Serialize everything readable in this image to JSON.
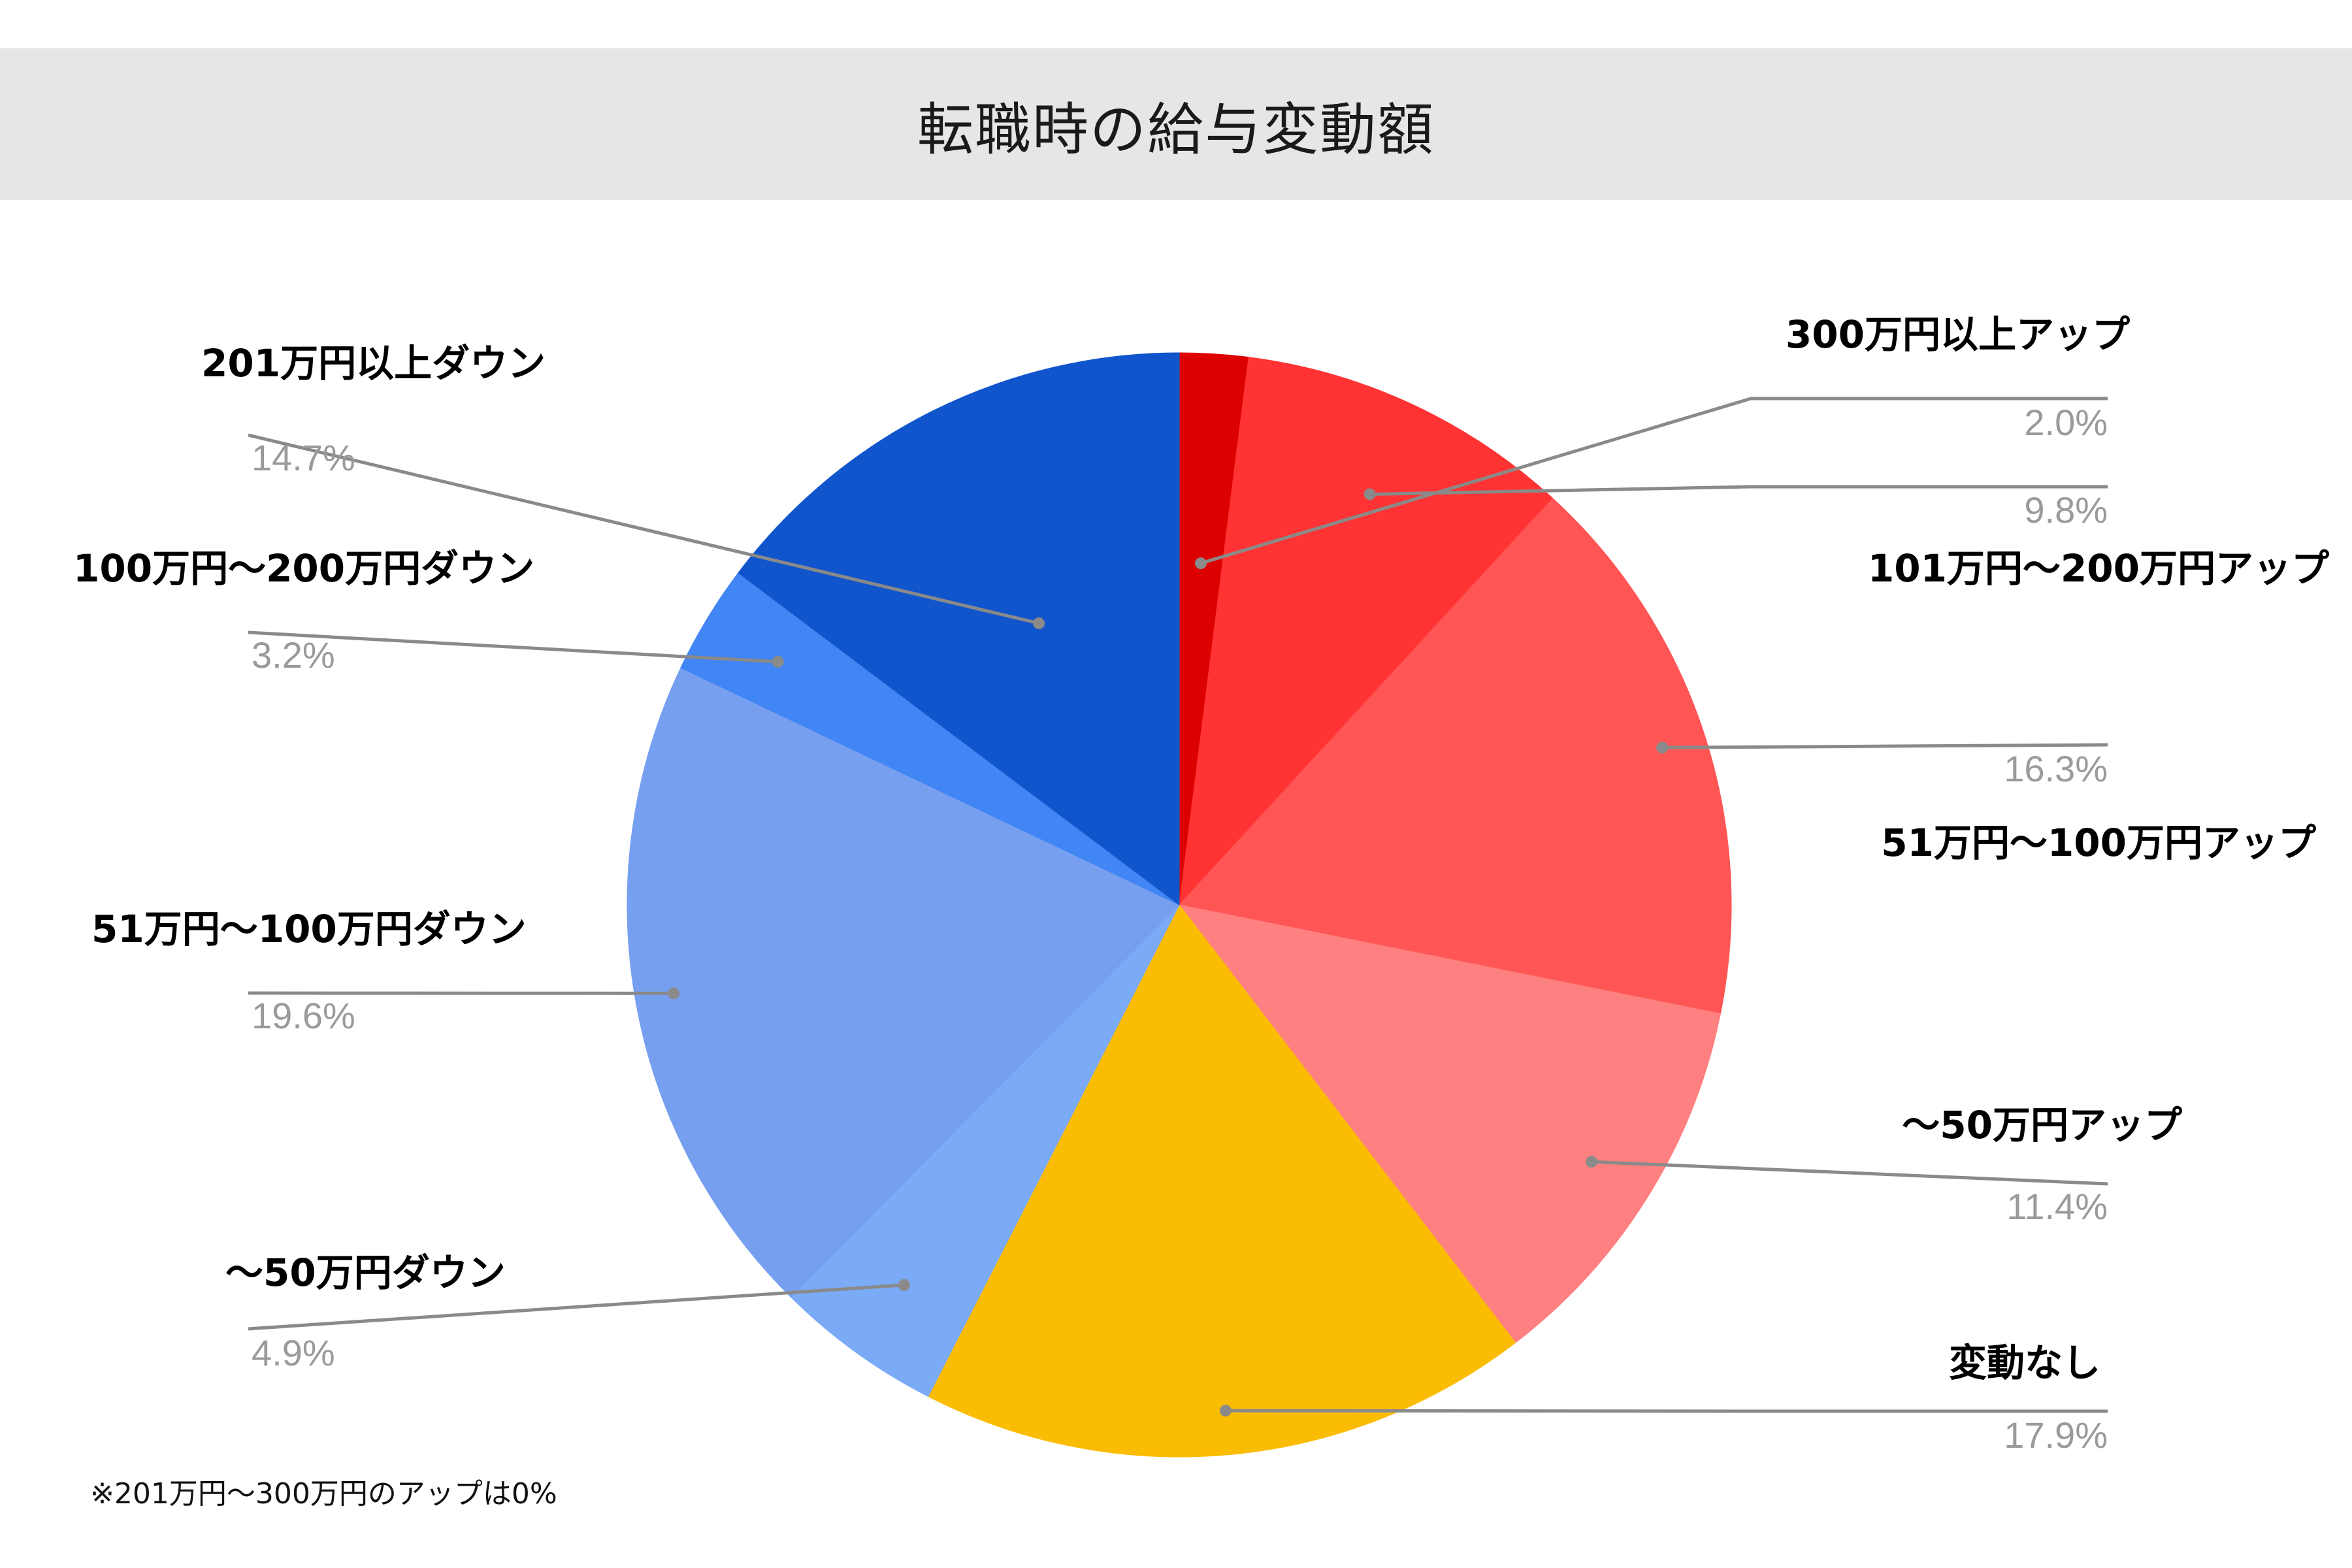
{
  "chart_data": {
    "type": "pie",
    "title": "転職時の給与変動額",
    "start_angle_deg": 0,
    "direction": "clockwise",
    "slices": [
      {
        "label": "300万円以上アップ",
        "value": 2.0,
        "display": "2.0%",
        "color": "#dd0000"
      },
      {
        "label": "101万円〜200万円アップ",
        "value": 9.8,
        "display": "9.8%",
        "color": "#ff3333"
      },
      {
        "label": "51万円〜100万円アップ",
        "value": 16.3,
        "display": "16.3%",
        "color": "#ff5555"
      },
      {
        "label": "〜50万円アップ",
        "value": 11.4,
        "display": "11.4%",
        "color": "#ff8080"
      },
      {
        "label": "変動なし",
        "value": 17.9,
        "display": "17.9%",
        "color": "#fbbc04"
      },
      {
        "label": "〜50万円ダウン",
        "value": 4.9,
        "display": "4.9%",
        "color": "#7baaf7"
      },
      {
        "label": "51万円〜100万円ダウン",
        "value": 19.6,
        "display": "19.6%",
        "color": "#769ff0"
      },
      {
        "label": "100万円〜200万円ダウン",
        "value": 3.2,
        "display": "3.2%",
        "color": "#4285f4"
      },
      {
        "label": "201万円以上ダウン",
        "value": 14.7,
        "display": "14.7%",
        "color": "#1155cc"
      }
    ]
  },
  "footnote": "※201万円〜300万円のアップは0%"
}
